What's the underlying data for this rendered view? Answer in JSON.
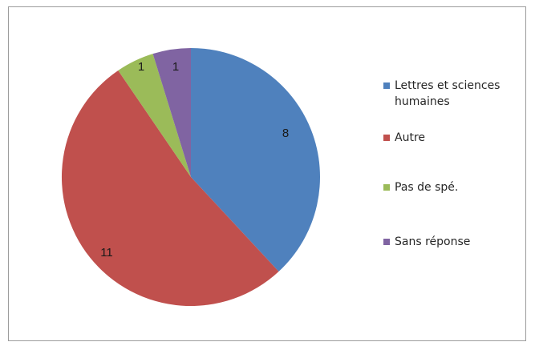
{
  "chart_data": {
    "type": "pie",
    "categories": [
      "Lettres et sciences humaines",
      "Autre",
      "Pas de spé.",
      "Sans réponse"
    ],
    "values": [
      8,
      11,
      1,
      1
    ],
    "data_labels": [
      "8",
      "11",
      "1",
      "1"
    ],
    "colors": [
      "#4f81bd",
      "#c0504d",
      "#9bbb59",
      "#8064a2"
    ],
    "legend": {
      "position": "right",
      "entries": [
        {
          "lines": [
            "Lettres et sciences",
            "humaines"
          ]
        },
        {
          "lines": [
            "Autre"
          ]
        },
        {
          "lines": [
            "Pas de spé."
          ]
        },
        {
          "lines": [
            "Sans réponse"
          ]
        }
      ]
    },
    "start_angle_deg": 0,
    "direction": "clockwise"
  }
}
